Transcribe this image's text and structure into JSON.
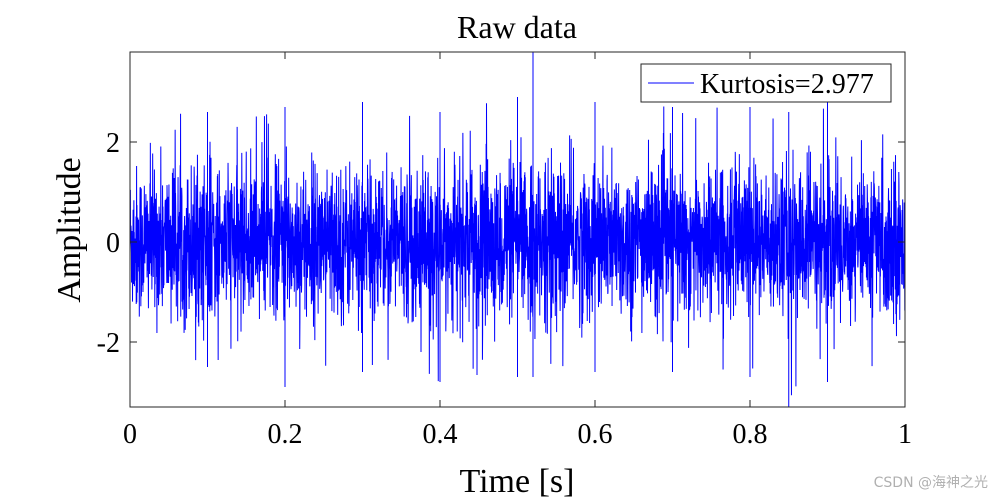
{
  "chart_data": {
    "type": "line",
    "title": "Raw data",
    "xlabel": "Time [s]",
    "ylabel": "Amplitude",
    "xlim": [
      0,
      1
    ],
    "ylim": [
      -3.3,
      3.8
    ],
    "xticks": [
      0,
      0.2,
      0.4,
      0.6,
      0.8,
      1
    ],
    "xtick_labels": [
      "0",
      "0.2",
      "0.4",
      "0.6",
      "0.8",
      "1"
    ],
    "yticks": [
      -2,
      0,
      2
    ],
    "ytick_labels": [
      "-2",
      "0",
      "2"
    ],
    "grid": false,
    "legend_position": "top-right",
    "series": [
      {
        "name": "Kurtosis=2.977",
        "color": "#0000ff",
        "description": "dense random vibration signal, approximately zero-mean",
        "envelope_x": [
          0,
          0.1,
          0.2,
          0.3,
          0.4,
          0.5,
          0.52,
          0.6,
          0.7,
          0.8,
          0.85,
          0.9,
          1
        ],
        "envelope_max": [
          2.5,
          2.6,
          2.7,
          2.8,
          2.6,
          2.9,
          3.8,
          2.8,
          2.7,
          2.7,
          2.6,
          2.9,
          2.8
        ],
        "envelope_min": [
          -2.7,
          -2.5,
          -2.9,
          -2.6,
          -2.8,
          -2.7,
          -2.7,
          -2.6,
          -2.6,
          -2.7,
          -3.3,
          -2.8,
          -2.6
        ]
      }
    ]
  },
  "watermark": "CSDN @海神之光"
}
